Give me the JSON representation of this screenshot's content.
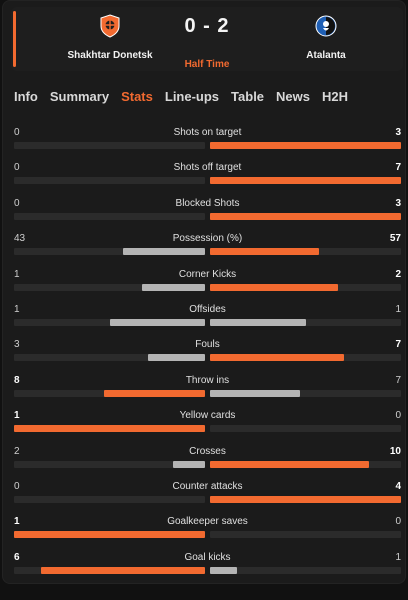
{
  "match": {
    "home": {
      "name": "Shakhtar Donetsk",
      "score": "0"
    },
    "away": {
      "name": "Atalanta",
      "score": "2"
    },
    "score_display": "0 - 2",
    "period": "Half Time"
  },
  "colors": {
    "accent": "#f26a30",
    "bar_gray": "#b4b4b4",
    "track": "#2b2b2b",
    "background": "#1b1b1b"
  },
  "tabs": [
    {
      "label": "Info",
      "active": false
    },
    {
      "label": "Summary",
      "active": false
    },
    {
      "label": "Stats",
      "active": true
    },
    {
      "label": "Line-ups",
      "active": false
    },
    {
      "label": "Table",
      "active": false
    },
    {
      "label": "News",
      "active": false
    },
    {
      "label": "H2H",
      "active": false
    }
  ],
  "stats": [
    {
      "label": "Shots on target",
      "home": "0",
      "away": "3",
      "home_fill": 0,
      "away_fill": 1.0,
      "winner": "away"
    },
    {
      "label": "Shots off target",
      "home": "0",
      "away": "7",
      "home_fill": 0,
      "away_fill": 1.0,
      "winner": "away"
    },
    {
      "label": "Blocked Shots",
      "home": "0",
      "away": "3",
      "home_fill": 0,
      "away_fill": 1.0,
      "winner": "away"
    },
    {
      "label": "Possession (%)",
      "home": "43",
      "away": "57",
      "home_fill": 0.43,
      "away_fill": 0.57,
      "winner": "away"
    },
    {
      "label": "Corner Kicks",
      "home": "1",
      "away": "2",
      "home_fill": 0.33,
      "away_fill": 0.67,
      "winner": "away"
    },
    {
      "label": "Offsides",
      "home": "1",
      "away": "1",
      "home_fill": 0.5,
      "away_fill": 0.5,
      "winner": "none"
    },
    {
      "label": "Fouls",
      "home": "3",
      "away": "7",
      "home_fill": 0.3,
      "away_fill": 0.7,
      "winner": "away"
    },
    {
      "label": "Throw ins",
      "home": "8",
      "away": "7",
      "home_fill": 0.53,
      "away_fill": 0.47,
      "winner": "home"
    },
    {
      "label": "Yellow cards",
      "home": "1",
      "away": "0",
      "home_fill": 1.0,
      "away_fill": 0,
      "winner": "home"
    },
    {
      "label": "Crosses",
      "home": "2",
      "away": "10",
      "home_fill": 0.17,
      "away_fill": 0.83,
      "winner": "away"
    },
    {
      "label": "Counter attacks",
      "home": "0",
      "away": "4",
      "home_fill": 0,
      "away_fill": 1.0,
      "winner": "away"
    },
    {
      "label": "Goalkeeper saves",
      "home": "1",
      "away": "0",
      "home_fill": 1.0,
      "away_fill": 0,
      "winner": "home"
    },
    {
      "label": "Goal kicks",
      "home": "6",
      "away": "1",
      "home_fill": 0.86,
      "away_fill": 0.14,
      "winner": "home"
    }
  ]
}
